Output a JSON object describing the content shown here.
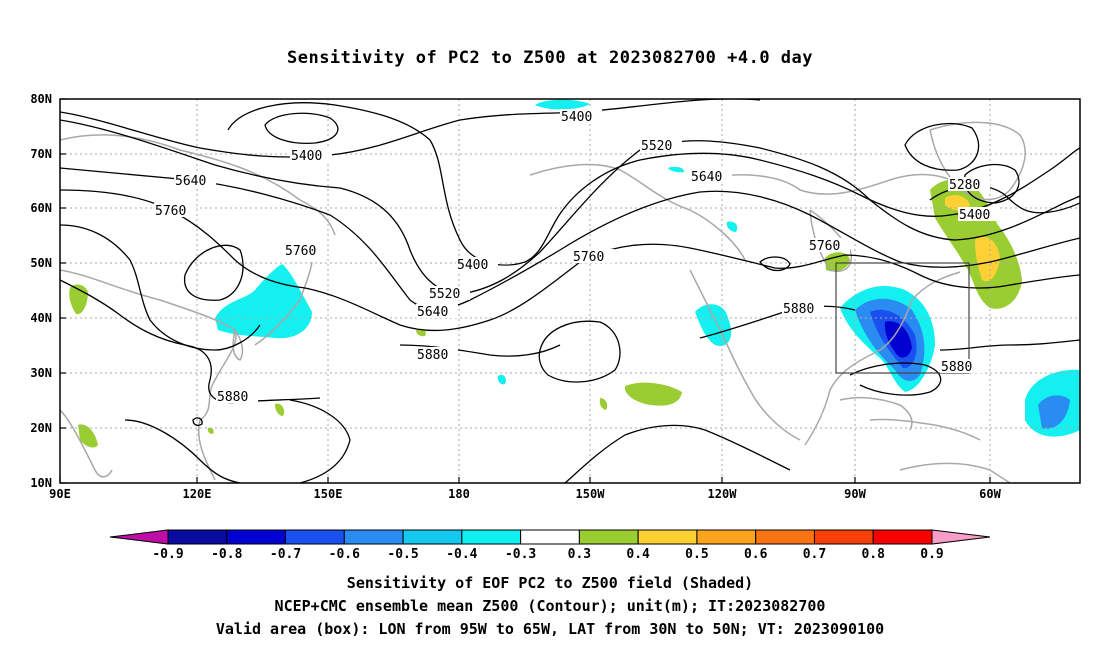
{
  "title": "Sensitivity of PC2 to Z500 at 2023082700 +4.0 day",
  "footer": {
    "line1": "Sensitivity of EOF PC2 to Z500 field (Shaded)",
    "line2": "NCEP+CMC ensemble mean Z500 (Contour); unit(m); IT:2023082700",
    "line3": "Valid area (box): LON from 95W to 65W, LAT from 30N to 50N; VT: 2023090100"
  },
  "map": {
    "lon_ticks": [
      "90E",
      "120E",
      "150E",
      "180",
      "150W",
      "120W",
      "90W",
      "60W"
    ],
    "lat_ticks": [
      "80N",
      "70N",
      "60N",
      "50N",
      "40N",
      "30N",
      "20N",
      "10N"
    ],
    "contour_labels": [
      "5400",
      "5400",
      "5520",
      "5640",
      "5640",
      "5760",
      "5760",
      "5760",
      "5760",
      "5400",
      "5520",
      "5640",
      "5880",
      "5880",
      "5880",
      "5880",
      "5280",
      "5400"
    ],
    "colors": {
      "land_outline": "#a8a8a8",
      "contour": "#000000",
      "grid": "#aaaaaa"
    }
  },
  "colorbar": {
    "labels": [
      "-0.9",
      "-0.8",
      "-0.7",
      "-0.6",
      "-0.5",
      "-0.4",
      "-0.3",
      "0.3",
      "0.4",
      "0.5",
      "0.6",
      "0.7",
      "0.8",
      "0.9"
    ],
    "colors": [
      "#bd0fa5",
      "#0a0aa0",
      "#0000d0",
      "#1a50f0",
      "#2a8cf0",
      "#14c8f0",
      "#10f0f0",
      "#ffffff",
      "#9acd32",
      "#fdd034",
      "#fba51e",
      "#fa7314",
      "#f8410a",
      "#f80000",
      "#f89cc8"
    ]
  }
}
